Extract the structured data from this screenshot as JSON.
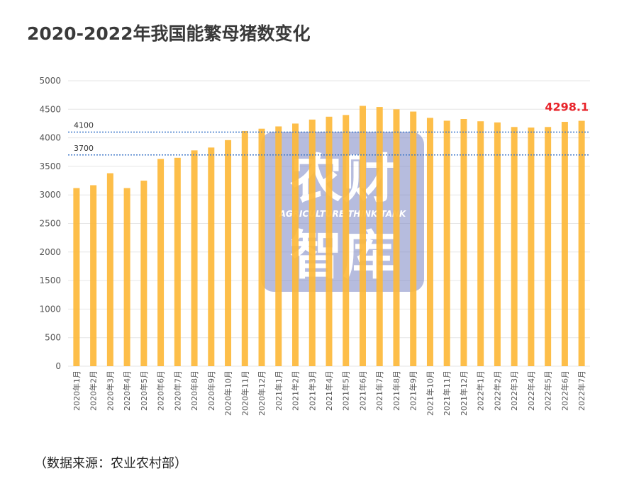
{
  "title": "2020-2022年我国能繁母猪数变化",
  "source": "（数据来源：农业农村部）",
  "watermark": {
    "line1": "农财",
    "subtitle": "AGRICULTURE  THINK TANK",
    "line2": "智库",
    "color": "#7b86c4"
  },
  "chart_data": {
    "type": "bar",
    "categories": [
      "2020年1月",
      "2020年2月",
      "2020年3月",
      "2020年4月",
      "2020年5月",
      "2020年6月",
      "2020年7月",
      "2020年8月",
      "2020年9月",
      "2020年10月",
      "2020年11月",
      "2020年12月",
      "2021年1月",
      "2021年2月",
      "2021年3月",
      "2021年4月",
      "2021年5月",
      "2021年6月",
      "2021年7月",
      "2021年8月",
      "2021年9月",
      "2021年10月",
      "2021年11月",
      "2021年12月",
      "2022年1月",
      "2022年2月",
      "2022年3月",
      "2022年4月",
      "2022年5月",
      "2022年6月",
      "2022年7月"
    ],
    "values": [
      3120,
      3170,
      3380,
      3120,
      3250,
      3630,
      3650,
      3780,
      3830,
      3960,
      4120,
      4160,
      4200,
      4250,
      4320,
      4370,
      4400,
      4560,
      4540,
      4500,
      4460,
      4350,
      4300,
      4330,
      4290,
      4270,
      4190,
      4180,
      4190,
      4280,
      4298.1
    ],
    "ylim": [
      0,
      5000
    ],
    "yticks": [
      "0",
      "500",
      "1000",
      "1500",
      "2000",
      "2500",
      "3000",
      "3500",
      "4000",
      "4500",
      "5000"
    ],
    "reference_lines": [
      {
        "value": 4100,
        "label": "4100"
      },
      {
        "value": 3700,
        "label": "3700"
      }
    ],
    "last_value_label": "4298.1",
    "bar_color": "#fdb93a",
    "grid": true
  }
}
